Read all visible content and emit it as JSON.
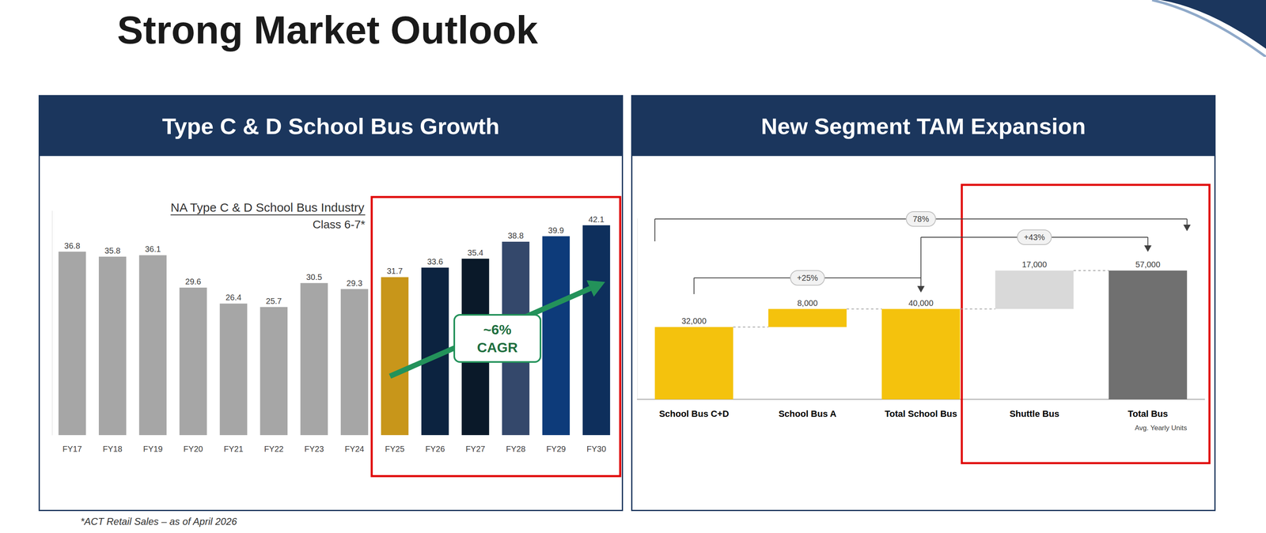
{
  "title": "Strong Market Outlook",
  "footnote": "*ACT Retail Sales – as of April 2026",
  "chart_data": [
    {
      "type": "bar",
      "header": "Type C & D School Bus Growth",
      "title": "NA Type C & D School Bus Industry",
      "subtitle": "Class 6-7*",
      "annotations": [
        "~6%",
        "CAGR"
      ],
      "categories": [
        "FY17",
        "FY18",
        "FY19",
        "FY20",
        "FY21",
        "FY22",
        "FY23",
        "FY24",
        "FY25",
        "FY26",
        "FY27",
        "FY28",
        "FY29",
        "FY30"
      ],
      "values": [
        36.8,
        35.8,
        36.1,
        29.6,
        26.4,
        25.7,
        30.5,
        29.3,
        31.7,
        33.6,
        35.4,
        38.8,
        39.9,
        42.1
      ],
      "colors": [
        "#a6a6a6",
        "#a6a6a6",
        "#a6a6a6",
        "#a6a6a6",
        "#a6a6a6",
        "#a6a6a6",
        "#a6a6a6",
        "#a6a6a6",
        "#c8961a",
        "#0c2340",
        "#0a1929",
        "#34486b",
        "#0d3b7a",
        "#0e2f5c"
      ],
      "ylim": [
        0,
        45
      ],
      "data_labels": true,
      "tick_labels": "x",
      "grid": false
    },
    {
      "type": "waterfall",
      "header": "New Segment TAM Expansion",
      "subtitle": "Avg. Yearly Units",
      "categories": [
        "School Bus C+D",
        "School Bus A",
        "Total School Bus",
        "Shuttle Bus",
        "Total Bus"
      ],
      "values": [
        32000,
        8000,
        40000,
        17000,
        57000
      ],
      "value_labels": [
        "32,000",
        "8,000",
        "40,000",
        "17,000",
        "57,000"
      ],
      "colors": [
        "#f4c20d",
        "#f4c20d",
        "#f4c20d",
        "#d9d9d9",
        "#707070"
      ],
      "annotations": [
        {
          "text": "+25%",
          "from": "School Bus C+D",
          "to": "Total School Bus"
        },
        {
          "text": "+43%",
          "from": "Total School Bus",
          "to": "Total Bus"
        },
        {
          "text": "78%",
          "from": "School Bus C+D",
          "to": "Total Bus"
        }
      ],
      "ylim": [
        0,
        80000
      ],
      "data_labels": true,
      "tick_labels": "x",
      "grid": false
    }
  ]
}
